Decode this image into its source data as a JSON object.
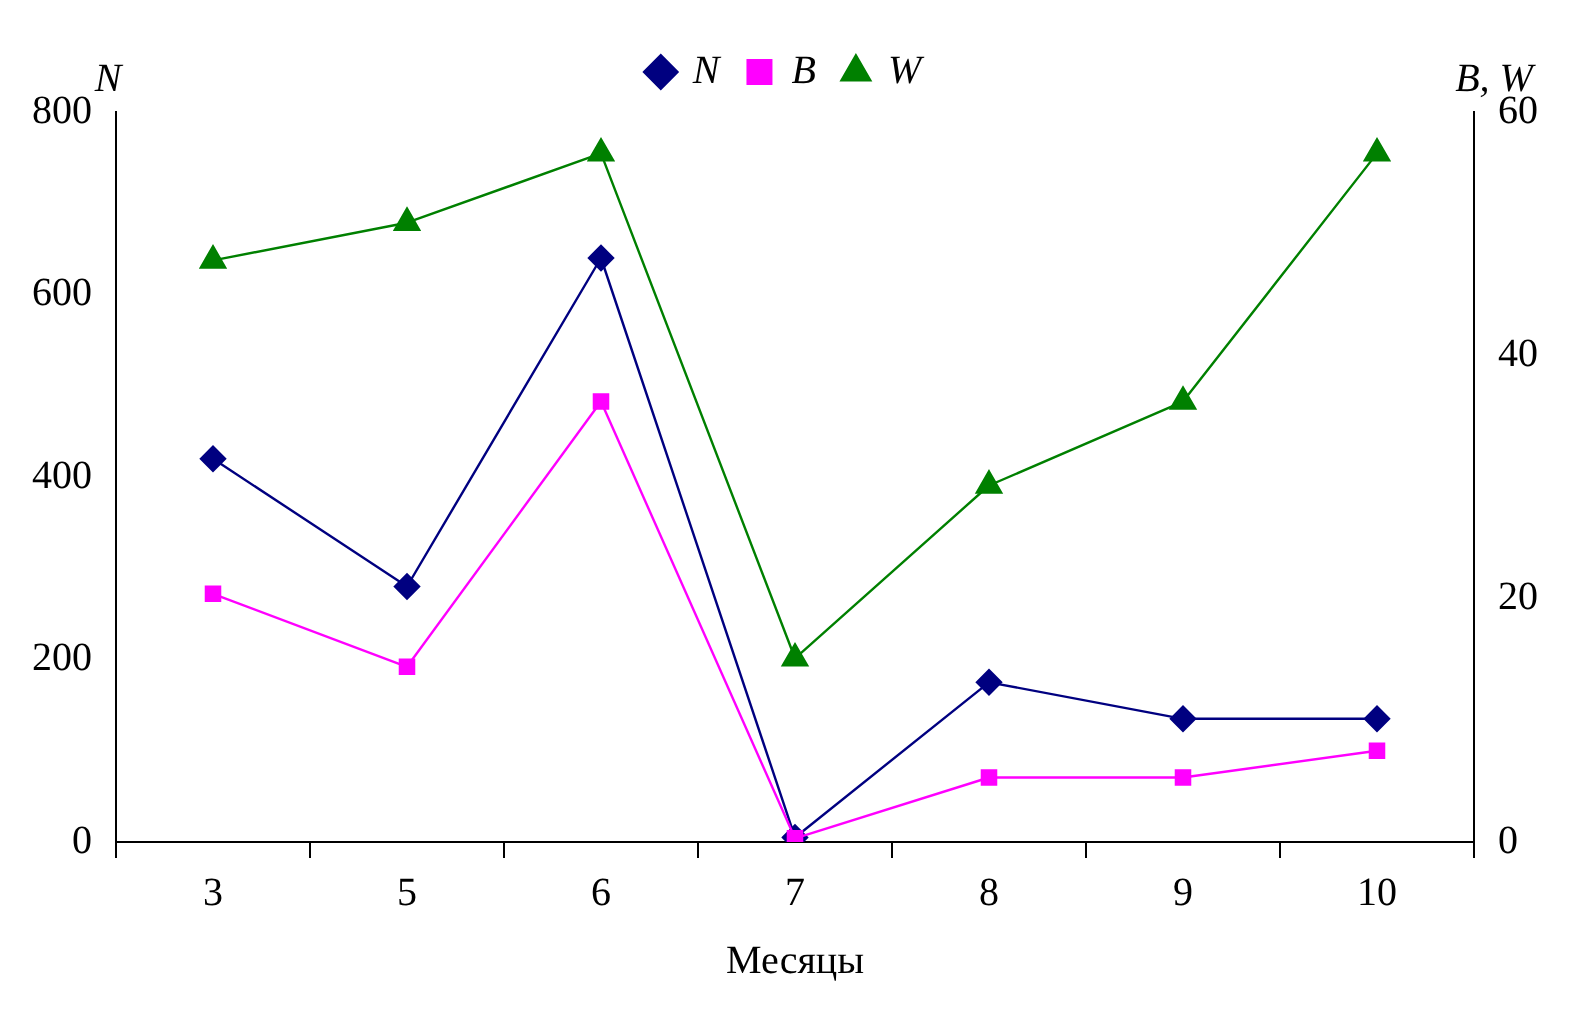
{
  "chart_data": {
    "type": "line",
    "xlabel": "Месяцы",
    "ylabel": "N",
    "y2label": "B, W",
    "categories": [
      "3",
      "5",
      "6",
      "7",
      "8",
      "9",
      "10"
    ],
    "series": [
      {
        "name": "N",
        "color": "#000080",
        "marker": "diamond",
        "values": [
          420,
          280,
          640,
          5,
          175,
          135,
          135
        ]
      },
      {
        "name": "B",
        "color": "#ff00ff",
        "marker": "square",
        "axis": "y2",
        "values": [
          20.4,
          14.4,
          36.2,
          0.3,
          5.3,
          5.3,
          7.5
        ]
      },
      {
        "name": "W",
        "color": "#008000",
        "marker": "triangle",
        "axis": "y2",
        "values": [
          47.8,
          50.9,
          56.6,
          15.1,
          29.3,
          36.2,
          56.6
        ]
      }
    ],
    "ylim": [
      0,
      800
    ],
    "yticks": [
      0,
      200,
      400,
      600,
      800
    ],
    "y2lim": [
      0,
      60
    ],
    "y2ticks": [
      0,
      20,
      40,
      60
    ],
    "grid": false,
    "legend": "top",
    "line_style": "solid"
  }
}
